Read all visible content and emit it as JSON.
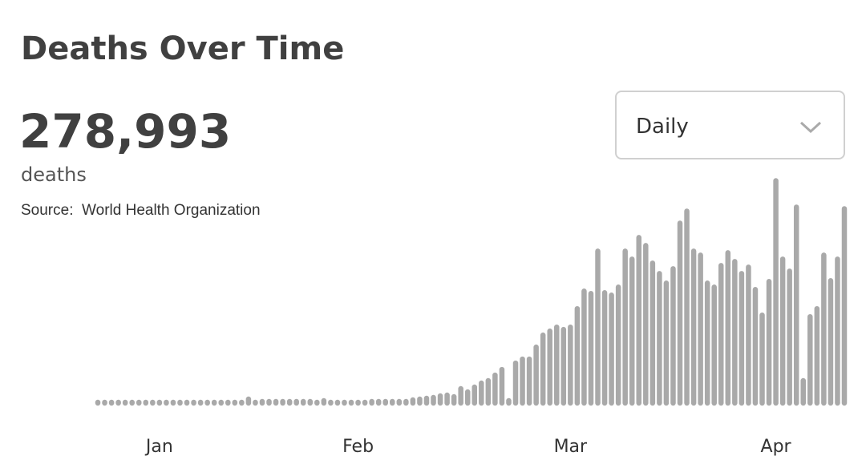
{
  "header": {
    "title": "Deaths Over Time",
    "total": "278,993",
    "total_unit": "deaths",
    "source_label": "Source:",
    "source": "World Health Organization"
  },
  "dropdown": {
    "selected": "Daily"
  },
  "chart_data": {
    "type": "bar",
    "color": "#a9a9a9",
    "ylim": [
      0,
      10100
    ],
    "categories": [
      null,
      null,
      null,
      null,
      null,
      null,
      null,
      null,
      null,
      "Jan",
      null,
      null,
      null,
      null,
      null,
      null,
      null,
      null,
      null,
      null,
      null,
      null,
      null,
      null,
      null,
      null,
      null,
      null,
      null,
      null,
      null,
      null,
      null,
      null,
      null,
      null,
      null,
      null,
      "Feb",
      null,
      null,
      null,
      null,
      null,
      null,
      null,
      null,
      null,
      null,
      null,
      null,
      null,
      null,
      null,
      null,
      null,
      null,
      null,
      null,
      null,
      null,
      null,
      null,
      null,
      null,
      null,
      null,
      null,
      null,
      "Mar",
      null,
      null,
      null,
      null,
      null,
      null,
      null,
      null,
      null,
      null,
      null,
      null,
      null,
      null,
      null,
      null,
      null,
      null,
      null,
      null,
      null,
      null,
      null,
      null,
      null,
      null,
      null,
      null,
      null,
      "Apr",
      null,
      null,
      null,
      null,
      null,
      null,
      null,
      null,
      null,
      null
    ],
    "values": [
      36,
      36,
      36,
      36,
      36,
      36,
      36,
      36,
      36,
      36,
      36,
      36,
      36,
      36,
      36,
      36,
      36,
      36,
      36,
      36,
      36,
      36,
      180,
      36,
      72,
      72,
      72,
      72,
      72,
      72,
      72,
      72,
      36,
      108,
      36,
      36,
      36,
      36,
      36,
      36,
      72,
      72,
      72,
      72,
      72,
      72,
      144,
      180,
      216,
      252,
      324,
      360,
      288,
      648,
      504,
      720,
      900,
      1008,
      1260,
      1512,
      108,
      1800,
      1980,
      1980,
      2520,
      3060,
      3240,
      3420,
      3312,
      3420,
      4248,
      5040,
      4932,
      6840,
      4968,
      4860,
      5220,
      6840,
      6480,
      7452,
      7092,
      6300,
      5832,
      5400,
      6048,
      8100,
      8640,
      6840,
      6660,
      5400,
      5220,
      6192,
      6768,
      6372,
      5832,
      6120,
      5112,
      3960,
      5472,
      10008,
      6480,
      5940,
      8820,
      1008,
      3888,
      4248,
      6660,
      5508,
      6480,
      8748
    ]
  }
}
